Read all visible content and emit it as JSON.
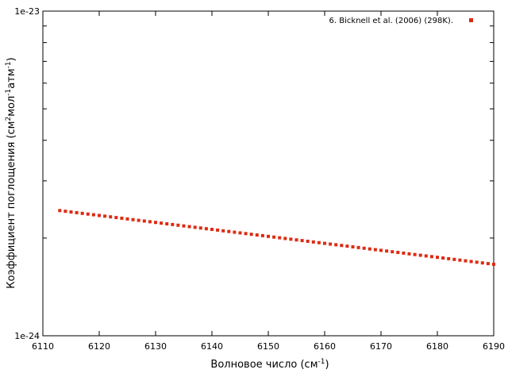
{
  "chart_data": {
    "type": "scatter",
    "xlabel": "Волновое число (см",
    "xlabel_sup": "-1",
    "xlabel_end": ")",
    "ylabel_parts": [
      {
        "text": "Коэффициент поглощения (см",
        "sup": false
      },
      {
        "text": "2",
        "sup": true
      },
      {
        "text": "мол",
        "sup": false
      },
      {
        "text": "-1",
        "sup": true
      },
      {
        "text": "атм",
        "sup": false
      },
      {
        "text": "-1",
        "sup": true
      },
      {
        "text": ")",
        "sup": false
      }
    ],
    "xlim": [
      6110,
      6190
    ],
    "ylim": [
      1e-24,
      1e-23
    ],
    "y_scale": "log",
    "x_ticks": [
      6110,
      6120,
      6130,
      6140,
      6150,
      6160,
      6170,
      6180,
      6190
    ],
    "y_tick_labels": [
      "1e-24",
      "1e-23"
    ],
    "grid": false,
    "legend_position": "top-right",
    "series": [
      {
        "name": "6. Bicknell et al. (2006) (298K).",
        "color": "#dd2b12",
        "marker": "square",
        "x_start": 6113,
        "x_end": 6190,
        "x_step": 1,
        "y_at_start": 2.43e-24,
        "y_at_end": 1.66e-24
      }
    ]
  }
}
